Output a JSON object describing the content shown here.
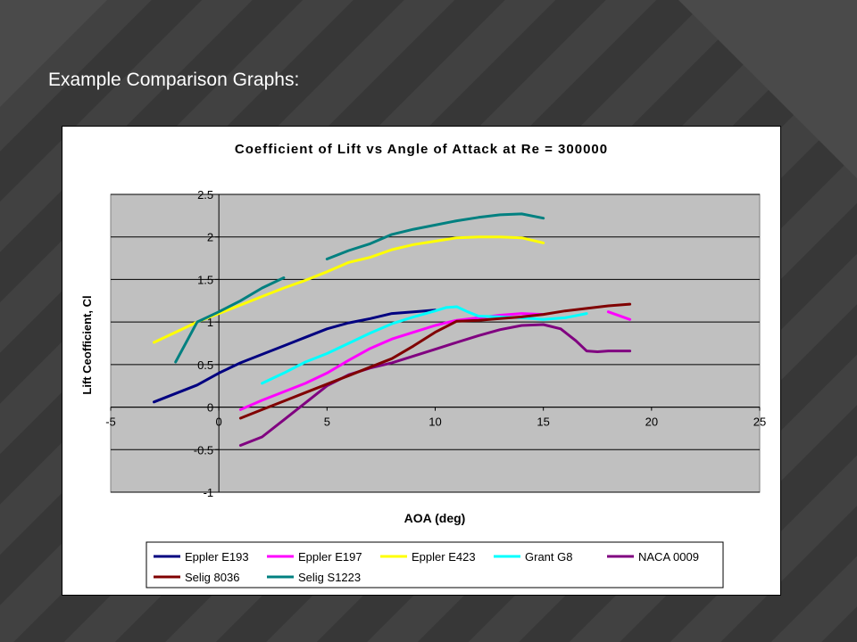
{
  "slide": {
    "title": "Example Comparison Graphs:"
  },
  "chart_data": {
    "type": "line",
    "title": "Coefficient of Lift vs Angle of Attack at Re = 300000",
    "xlabel": "AOA (deg)",
    "ylabel": "Lift Ceofficient, Cl",
    "xlim": [
      -5,
      25
    ],
    "ylim": [
      -1,
      2.5
    ],
    "xticks": [
      -5,
      0,
      5,
      10,
      15,
      20,
      25
    ],
    "yticks": [
      -1,
      -0.5,
      0,
      0.5,
      1,
      1.5,
      2,
      2.5
    ],
    "grid": "horizontal",
    "plot_bg": "#c0c0c0",
    "legend_position": "bottom",
    "series": [
      {
        "name": "Eppler E193",
        "color": "#000080",
        "x": [
          -3,
          -2,
          -1,
          0,
          1,
          2,
          3,
          4,
          5,
          6,
          7,
          8,
          9,
          10
        ],
        "y": [
          0.06,
          0.16,
          0.26,
          0.4,
          0.52,
          0.62,
          0.72,
          0.82,
          0.92,
          0.99,
          1.04,
          1.1,
          1.12,
          1.14
        ]
      },
      {
        "name": "Eppler E197",
        "color": "#ff00ff",
        "x": [
          1,
          2,
          3,
          4,
          5,
          6,
          7,
          8,
          9,
          10,
          11,
          12,
          13,
          14,
          15
        ],
        "y": [
          -0.03,
          0.08,
          0.18,
          0.28,
          0.4,
          0.55,
          0.69,
          0.8,
          0.88,
          0.96,
          1.02,
          1.05,
          1.08,
          1.1,
          1.09
        ]
      },
      {
        "name": "Eppler E197",
        "color": "#ff00ff",
        "x": [
          18,
          19
        ],
        "y": [
          1.12,
          1.03
        ],
        "hidden_from_legend": true
      },
      {
        "name": "Eppler E423",
        "color": "#ffff00",
        "x": [
          -3,
          -2,
          -1,
          0,
          1,
          2,
          3,
          4,
          5,
          6,
          7,
          8,
          9,
          10,
          11,
          12,
          13,
          14,
          15
        ],
        "y": [
          0.76,
          0.88,
          1.0,
          1.1,
          1.2,
          1.3,
          1.4,
          1.49,
          1.59,
          1.7,
          1.76,
          1.85,
          1.91,
          1.95,
          1.99,
          2.0,
          2.0,
          1.99,
          1.93
        ]
      },
      {
        "name": "Grant G8",
        "color": "#00ffff",
        "x": [
          2,
          3,
          4,
          5,
          6,
          7,
          8,
          9,
          10,
          10.5,
          11,
          11.5,
          12,
          13,
          14,
          15,
          16,
          17
        ],
        "y": [
          0.28,
          0.4,
          0.53,
          0.63,
          0.75,
          0.87,
          0.98,
          1.06,
          1.13,
          1.17,
          1.18,
          1.12,
          1.07,
          1.06,
          1.05,
          1.03,
          1.05,
          1.1
        ]
      },
      {
        "name": "NACA 0009",
        "color": "#800080",
        "x": [
          1,
          2,
          3,
          4,
          5,
          6,
          7,
          8,
          9,
          10,
          11,
          12,
          13,
          14,
          15,
          15.8,
          16.5,
          17,
          17.5,
          18,
          19
        ],
        "y": [
          -0.45,
          -0.35,
          -0.15,
          0.05,
          0.25,
          0.38,
          0.46,
          0.52,
          0.6,
          0.68,
          0.76,
          0.84,
          0.91,
          0.96,
          0.97,
          0.92,
          0.78,
          0.66,
          0.65,
          0.66,
          0.66
        ]
      },
      {
        "name": "Selig 8036",
        "color": "#800000",
        "x": [
          1,
          2,
          3,
          4,
          5,
          6,
          7,
          8,
          9,
          10,
          11,
          12,
          13,
          14,
          15,
          16,
          17,
          18,
          19
        ],
        "y": [
          -0.13,
          -0.03,
          0.07,
          0.17,
          0.27,
          0.37,
          0.47,
          0.57,
          0.72,
          0.88,
          1.01,
          1.02,
          1.04,
          1.06,
          1.09,
          1.13,
          1.16,
          1.19,
          1.21
        ]
      },
      {
        "name": "Selig S1223",
        "color": "#008080",
        "x": [
          -2,
          -1,
          0,
          1,
          2,
          3
        ],
        "y": [
          0.53,
          1.0,
          1.12,
          1.25,
          1.4,
          1.52
        ]
      },
      {
        "name": "Selig S1223",
        "color": "#008080",
        "x": [
          5,
          6,
          7,
          8,
          9,
          10,
          11,
          12,
          13,
          14,
          15
        ],
        "y": [
          1.74,
          1.84,
          1.92,
          2.03,
          2.09,
          2.14,
          2.19,
          2.23,
          2.26,
          2.27,
          2.22
        ],
        "hidden_from_legend": true
      }
    ],
    "legend": [
      {
        "name": "Eppler E193",
        "color": "#000080"
      },
      {
        "name": "Eppler E197",
        "color": "#ff00ff"
      },
      {
        "name": "Eppler E423",
        "color": "#ffff00"
      },
      {
        "name": "Grant G8",
        "color": "#00ffff"
      },
      {
        "name": "NACA 0009",
        "color": "#800080"
      },
      {
        "name": "Selig 8036",
        "color": "#800000"
      },
      {
        "name": "Selig S1223",
        "color": "#008080"
      }
    ]
  }
}
